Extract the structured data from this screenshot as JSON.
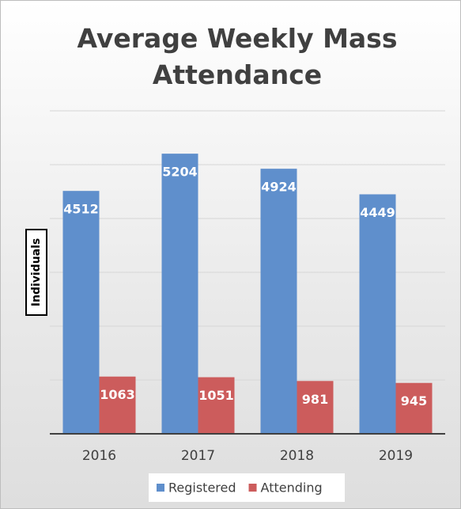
{
  "chart_data": {
    "type": "bar",
    "title": "Average Weekly Mass Attendance",
    "y_label": "Individuals",
    "categories": [
      "2016",
      "2017",
      "2018",
      "2019"
    ],
    "series": [
      {
        "name": "Registered",
        "color": "#5f8fcc",
        "values": [
          4512,
          5204,
          4924,
          4449
        ]
      },
      {
        "name": "Attending",
        "color": "#cc5c5c",
        "values": [
          1063,
          1051,
          981,
          945
        ]
      }
    ],
    "ylim": [
      0,
      6000
    ],
    "yticks": [
      0,
      1000,
      2000,
      3000,
      4000,
      5000,
      6000
    ],
    "grid": true,
    "legend": "bottom"
  }
}
